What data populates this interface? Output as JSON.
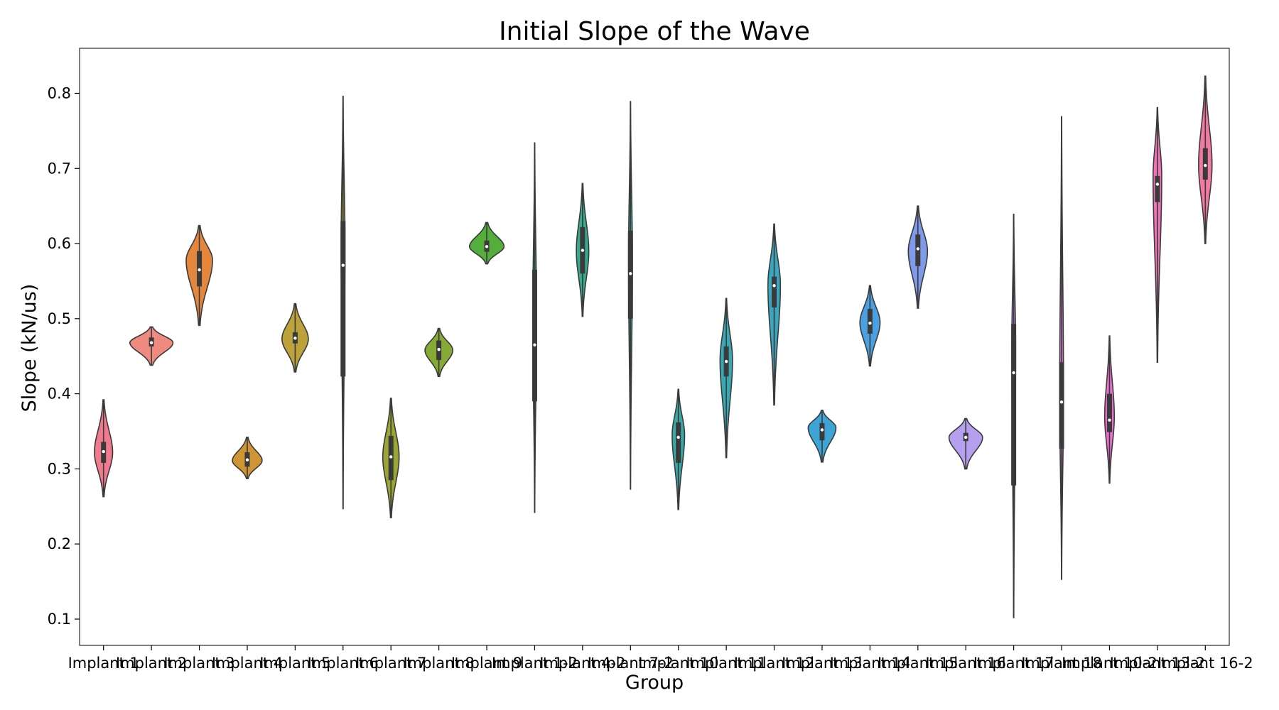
{
  "chart_data": {
    "type": "violin",
    "title": "Initial Slope of the Wave",
    "xlabel": "Group",
    "ylabel": "Slope (kN/us)",
    "ylim": [
      0.065,
      0.86
    ],
    "yticks": [
      "0.1",
      "0.2",
      "0.3",
      "0.4",
      "0.5",
      "0.6",
      "0.7",
      "0.8"
    ],
    "grid": false,
    "categories": [
      "Implant 1",
      "Implant 2",
      "Implant 3",
      "Implant 4",
      "Implant 5",
      "Implant 6",
      "Implant 7",
      "Implant 8",
      "Implant 9",
      "Implant 1-2",
      "Implant 4-2",
      "Implant 7-2",
      "Implant 10",
      "Implant 11",
      "Implant 12",
      "Implant 13",
      "Implant 14",
      "Implant 15",
      "Implant 16",
      "Implant 17",
      "Implant 18",
      "Implant 10-2",
      "Implant 13-2",
      "Implant 16-2"
    ],
    "violins": [
      {
        "color": "#f07a8e",
        "min": 0.263,
        "max": 0.392,
        "q1": 0.308,
        "median": 0.323,
        "q3": 0.336,
        "mode": 0.322,
        "width": 0.38
      },
      {
        "color": "#ef8a80",
        "min": 0.438,
        "max": 0.489,
        "q1": 0.463,
        "median": 0.468,
        "q3": 0.475,
        "mode": 0.468,
        "width": 0.9
      },
      {
        "color": "#e4873e",
        "min": 0.491,
        "max": 0.624,
        "q1": 0.543,
        "median": 0.565,
        "q3": 0.59,
        "mode": 0.578,
        "width": 0.55
      },
      {
        "color": "#cf9434",
        "min": 0.287,
        "max": 0.342,
        "q1": 0.303,
        "median": 0.312,
        "q3": 0.322,
        "mode": 0.311,
        "width": 0.62
      },
      {
        "color": "#bca23a",
        "min": 0.429,
        "max": 0.52,
        "q1": 0.467,
        "median": 0.474,
        "q3": 0.482,
        "mode": 0.473,
        "width": 0.55
      },
      {
        "color": "#a9a436",
        "min": 0.247,
        "max": 0.796,
        "q1": 0.423,
        "median": 0.571,
        "q3": 0.63,
        "mode": 0.6,
        "width": 0.08
      },
      {
        "color": "#9ba533",
        "min": 0.235,
        "max": 0.394,
        "q1": 0.285,
        "median": 0.316,
        "q3": 0.344,
        "mode": 0.316,
        "width": 0.34
      },
      {
        "color": "#86ab34",
        "min": 0.423,
        "max": 0.487,
        "q1": 0.445,
        "median": 0.459,
        "q3": 0.471,
        "mode": 0.458,
        "width": 0.58
      },
      {
        "color": "#54ae3b",
        "min": 0.573,
        "max": 0.628,
        "q1": 0.589,
        "median": 0.596,
        "q3": 0.604,
        "mode": 0.596,
        "width": 0.72
      },
      {
        "color": "#35ad6d",
        "min": 0.242,
        "max": 0.734,
        "q1": 0.39,
        "median": 0.465,
        "q3": 0.565,
        "mode": 0.5,
        "width": 0.08
      },
      {
        "color": "#35ac8e",
        "min": 0.503,
        "max": 0.68,
        "q1": 0.56,
        "median": 0.591,
        "q3": 0.622,
        "mode": 0.59,
        "width": 0.26
      },
      {
        "color": "#36aa9f",
        "min": 0.273,
        "max": 0.789,
        "q1": 0.5,
        "median": 0.56,
        "q3": 0.617,
        "mode": 0.58,
        "width": 0.08
      },
      {
        "color": "#37a8a8",
        "min": 0.246,
        "max": 0.406,
        "q1": 0.308,
        "median": 0.342,
        "q3": 0.362,
        "mode": 0.345,
        "width": 0.26
      },
      {
        "color": "#38a8b2",
        "min": 0.315,
        "max": 0.527,
        "q1": 0.423,
        "median": 0.443,
        "q3": 0.463,
        "mode": 0.445,
        "width": 0.26
      },
      {
        "color": "#39a7c0",
        "min": 0.385,
        "max": 0.626,
        "q1": 0.515,
        "median": 0.544,
        "q3": 0.556,
        "mode": 0.545,
        "width": 0.26
      },
      {
        "color": "#3ca5d6",
        "min": 0.309,
        "max": 0.378,
        "q1": 0.338,
        "median": 0.352,
        "q3": 0.361,
        "mode": 0.355,
        "width": 0.58
      },
      {
        "color": "#4aa0e0",
        "min": 0.437,
        "max": 0.544,
        "q1": 0.48,
        "median": 0.494,
        "q3": 0.513,
        "mode": 0.495,
        "width": 0.42
      },
      {
        "color": "#7e9ae8",
        "min": 0.514,
        "max": 0.65,
        "q1": 0.57,
        "median": 0.593,
        "q3": 0.612,
        "mode": 0.59,
        "width": 0.4
      },
      {
        "color": "#b79ff0",
        "min": 0.3,
        "max": 0.367,
        "q1": 0.337,
        "median": 0.342,
        "q3": 0.348,
        "mode": 0.342,
        "width": 0.7
      },
      {
        "color": "#c38de8",
        "min": 0.102,
        "max": 0.639,
        "q1": 0.278,
        "median": 0.428,
        "q3": 0.493,
        "mode": 0.46,
        "width": 0.08
      },
      {
        "color": "#e07ae0",
        "min": 0.153,
        "max": 0.769,
        "q1": 0.327,
        "median": 0.389,
        "q3": 0.442,
        "mode": 0.4,
        "width": 0.08
      },
      {
        "color": "#ea6fd0",
        "min": 0.281,
        "max": 0.477,
        "q1": 0.349,
        "median": 0.365,
        "q3": 0.4,
        "mode": 0.37,
        "width": 0.2
      },
      {
        "color": "#ef72b8",
        "min": 0.442,
        "max": 0.781,
        "q1": 0.655,
        "median": 0.679,
        "q3": 0.69,
        "mode": 0.69,
        "width": 0.18
      },
      {
        "color": "#f07aa2",
        "min": 0.6,
        "max": 0.823,
        "q1": 0.685,
        "median": 0.704,
        "q3": 0.727,
        "mode": 0.705,
        "width": 0.28
      }
    ]
  }
}
